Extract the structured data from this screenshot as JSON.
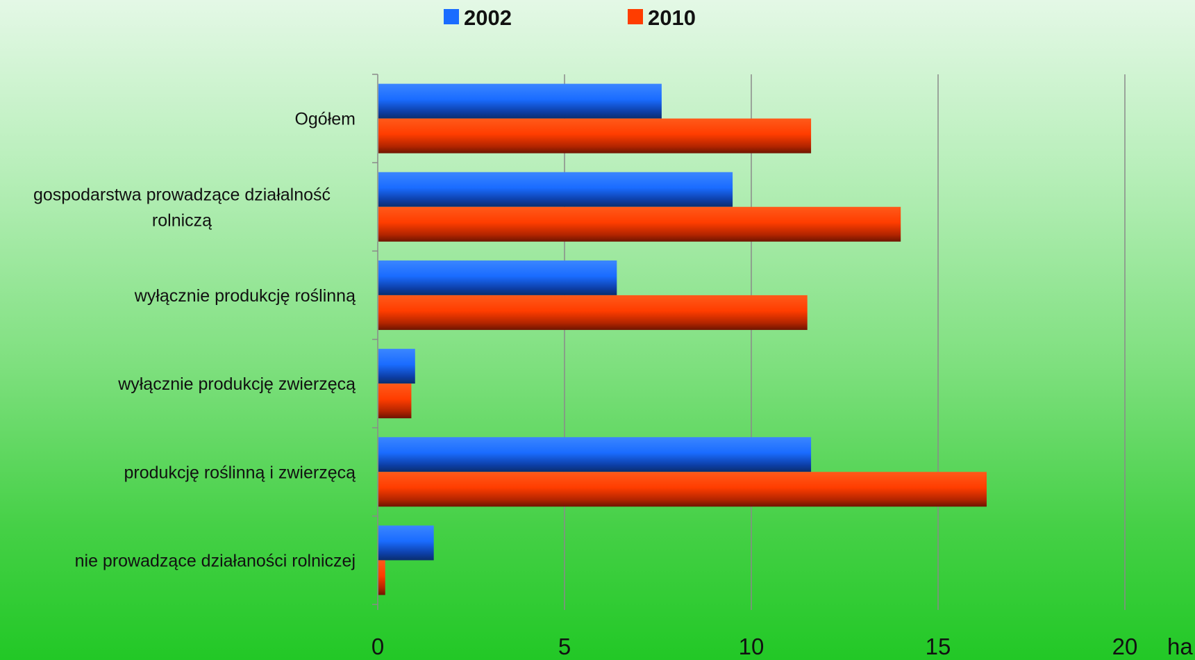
{
  "chart_data": {
    "type": "bar",
    "orientation": "horizontal",
    "categories": [
      [
        "Ogółem"
      ],
      [
        "gospodarstwa prowadzące działalność",
        "rolniczą"
      ],
      [
        "wyłącznie produkcję roślinną"
      ],
      [
        "wyłącznie produkcję zwierzęcą"
      ],
      [
        "produkcję roślinną i zwierzęcą"
      ],
      [
        "nie prowadzące działaności rolniczej"
      ]
    ],
    "series": [
      {
        "name": "2002",
        "color": "#1a6cff",
        "values": [
          7.6,
          9.5,
          6.4,
          1.0,
          11.6,
          1.5
        ]
      },
      {
        "name": "2010",
        "color": "#ff3d00",
        "values": [
          11.6,
          14.0,
          11.5,
          0.9,
          16.3,
          0.2
        ]
      }
    ],
    "xlim": [
      0,
      20
    ],
    "xticks": [
      "0",
      "5",
      "10",
      "15",
      "20"
    ],
    "x_unit": "ha",
    "grid": true,
    "legend_position": "top"
  }
}
